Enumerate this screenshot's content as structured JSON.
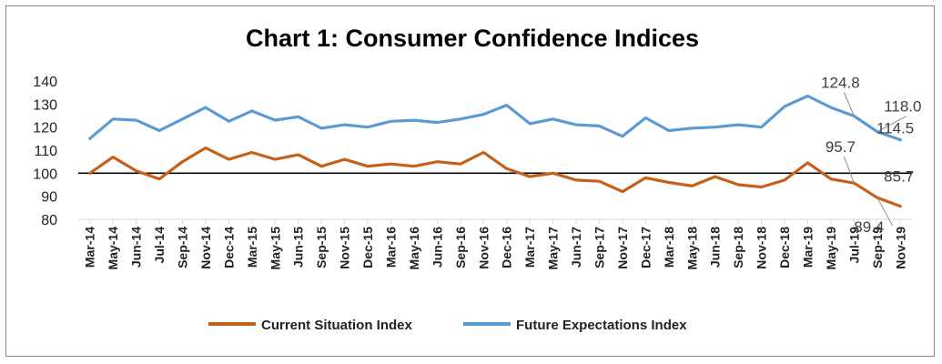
{
  "chart_data": {
    "type": "line",
    "title": "Chart 1: Consumer Confidence Indices",
    "xlabel": "",
    "ylabel": "",
    "ylim": [
      80,
      140
    ],
    "yticks": [
      80,
      90,
      100,
      110,
      120,
      130,
      140
    ],
    "reference_line": 100,
    "grid": false,
    "legend_position": "bottom",
    "categories": [
      "Mar-14",
      "May-14",
      "Jun-14",
      "Jul-14",
      "Sep-14",
      "Nov-14",
      "Dec-14",
      "Mar-15",
      "May-15",
      "Jun-15",
      "Sep-15",
      "Nov-15",
      "Dec-15",
      "Mar-16",
      "May-16",
      "Jun-16",
      "Sep-16",
      "Nov-16",
      "Dec-16",
      "Mar-17",
      "May-17",
      "Jun-17",
      "Sep-17",
      "Nov-17",
      "Dec-17",
      "Mar-18",
      "May-18",
      "Jun-18",
      "Sep-18",
      "Nov-18",
      "Dec-18",
      "Mar-19",
      "May-19",
      "Jul-19",
      "Sep-19",
      "Nov-19"
    ],
    "series": [
      {
        "name": "Current Situation Index",
        "color": "#c5601a",
        "values": [
          100,
          107,
          101,
          97.5,
          105,
          111,
          106,
          109,
          106,
          108,
          103,
          106,
          103,
          104,
          103,
          105,
          104,
          109,
          102,
          98.5,
          100,
          97,
          96.5,
          92,
          98,
          96,
          94.5,
          98.5,
          95,
          94,
          97,
          104.5,
          97.5,
          95.7,
          89.4,
          85.7
        ]
      },
      {
        "name": "Future Expectations Index",
        "color": "#5b9bd5",
        "values": [
          115,
          123.5,
          123,
          118.5,
          123.5,
          128.5,
          122.5,
          127,
          123,
          124.5,
          119.5,
          121,
          120,
          122.5,
          123,
          122,
          123.5,
          125.5,
          129.5,
          121.5,
          123.5,
          121,
          120.5,
          116,
          124,
          118.5,
          119.5,
          120,
          121,
          120,
          129,
          133.5,
          128.5,
          124.8,
          118.0,
          114.5
        ]
      }
    ],
    "annotations": [
      {
        "text": "124.8",
        "series": 1,
        "index": 33
      },
      {
        "text": "118.0",
        "series": 1,
        "index": 34
      },
      {
        "text": "114.5",
        "series": 1,
        "index": 35
      },
      {
        "text": "95.7",
        "series": 0,
        "index": 33
      },
      {
        "text": "89.4",
        "series": 0,
        "index": 34
      },
      {
        "text": "85.7",
        "series": 0,
        "index": 35
      }
    ]
  }
}
